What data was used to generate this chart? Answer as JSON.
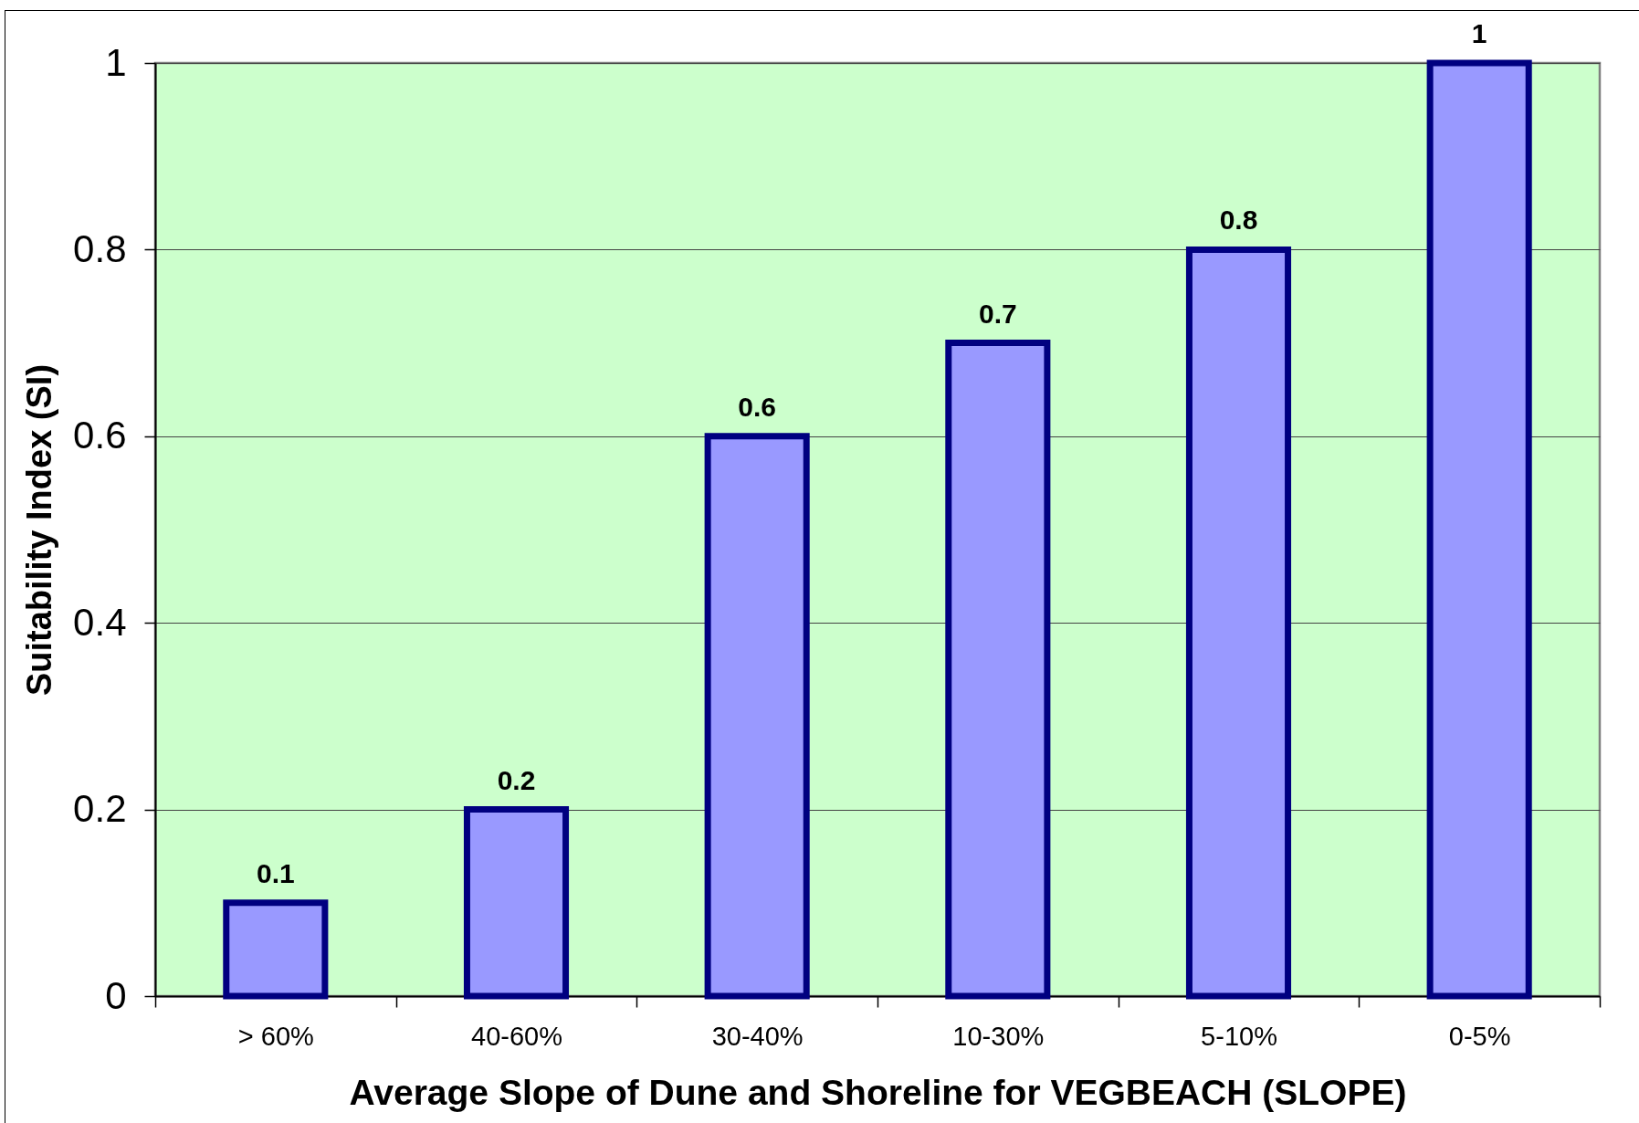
{
  "chart_data": {
    "type": "bar",
    "categories": [
      "> 60%",
      "40-60%",
      "30-40%",
      "10-30%",
      "5-10%",
      "0-5%"
    ],
    "values": [
      0.1,
      0.2,
      0.6,
      0.7,
      0.8,
      1
    ],
    "color": "#9999ff",
    "xlabel": "Average Slope of Dune and Shoreline for VEGBEACH (SLOPE)",
    "ylabel": "Suitability Index (SI)",
    "ylim": [
      0,
      1
    ],
    "yticks": [
      0,
      0.2,
      0.4,
      0.6,
      0.8,
      1
    ],
    "grid": "y",
    "data_labels": true
  }
}
